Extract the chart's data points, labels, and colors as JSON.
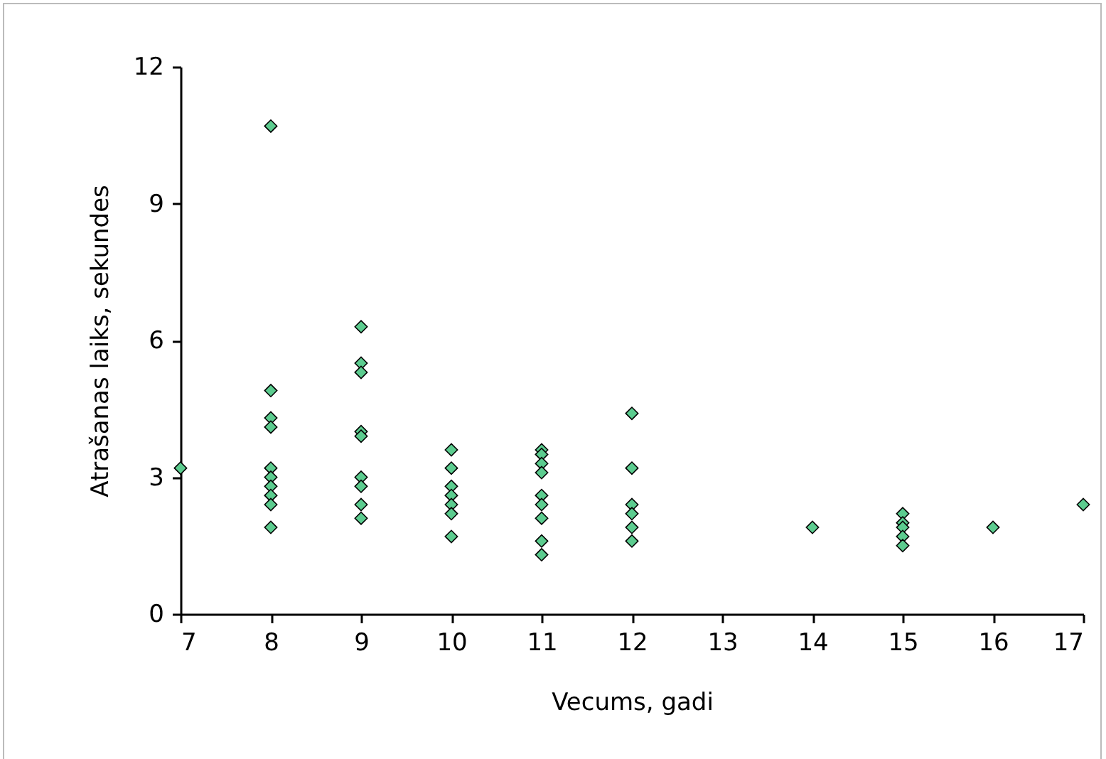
{
  "chart_data": {
    "type": "scatter",
    "xlabel": "Vecums, gadi",
    "ylabel": "Atrašanas laiks, sekundes",
    "x": [
      7,
      8,
      8,
      8,
      8,
      8,
      8,
      8,
      8,
      8,
      8,
      9,
      9,
      9,
      9,
      9,
      9,
      9,
      9,
      9,
      10,
      10,
      10,
      10,
      10,
      10,
      10,
      11,
      11,
      11,
      11,
      11,
      11,
      11,
      11,
      11,
      12,
      12,
      12,
      12,
      12,
      12,
      14,
      15,
      15,
      15,
      15,
      15,
      16,
      17
    ],
    "series": [
      {
        "color": "#5ccc8f",
        "values": [
          3.2,
          10.7,
          4.9,
          4.3,
          4.1,
          3.2,
          3.0,
          2.8,
          2.6,
          2.4,
          1.9,
          6.3,
          5.5,
          5.3,
          4.0,
          3.9,
          3.0,
          2.8,
          2.4,
          2.1,
          3.6,
          3.2,
          2.8,
          2.6,
          2.4,
          2.2,
          1.7,
          3.6,
          3.5,
          3.3,
          3.1,
          2.6,
          2.4,
          2.1,
          1.6,
          1.3,
          4.4,
          3.2,
          2.4,
          2.2,
          1.9,
          1.6,
          1.9,
          2.2,
          2.0,
          1.9,
          1.7,
          1.5,
          1.9,
          2.4
        ]
      }
    ],
    "xlim": [
      7,
      17
    ],
    "xticks": [
      7,
      8,
      9,
      10,
      11,
      12,
      13,
      14,
      15,
      16,
      17
    ],
    "ylim": [
      0,
      12
    ],
    "yticks": [
      0,
      3,
      6,
      9,
      12
    ],
    "marker": "diamond",
    "grid": false
  }
}
